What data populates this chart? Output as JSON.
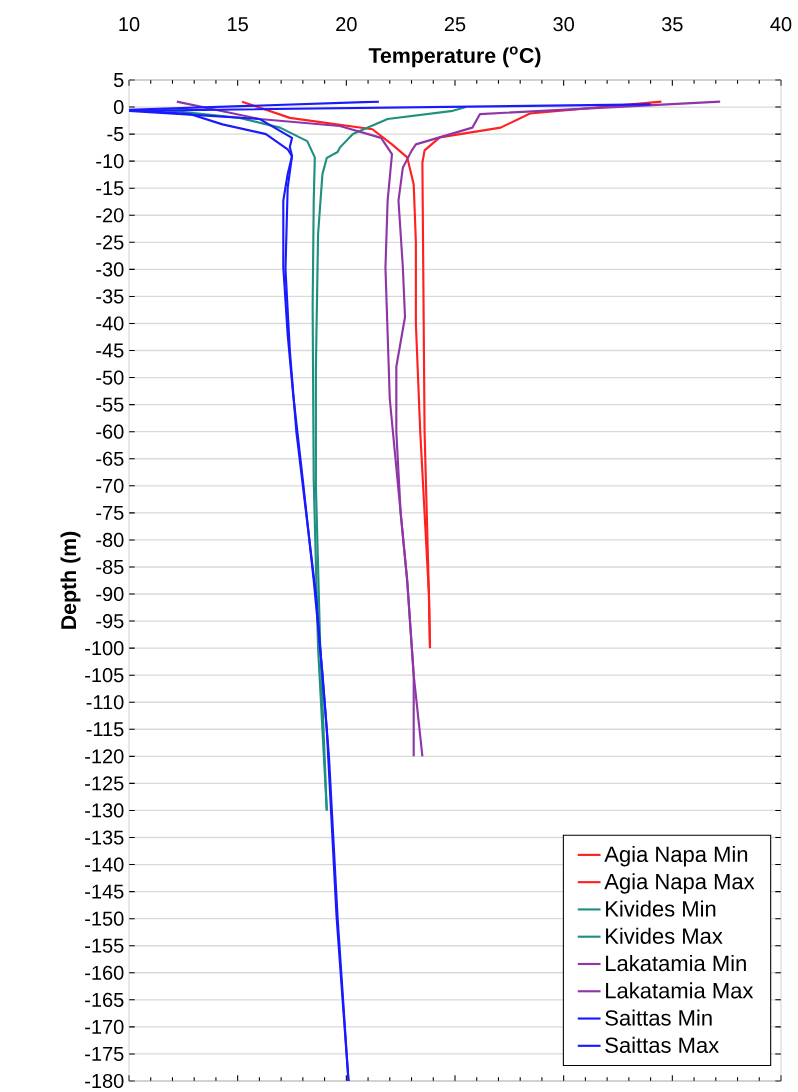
{
  "chart_data": {
    "type": "line",
    "xlabel": "Temperature ($^{o}$C)",
    "ylabel": "Depth (m)",
    "xlim": [
      10,
      40
    ],
    "ylim": [
      -180,
      5
    ],
    "xticks": [
      10,
      15,
      20,
      25,
      30,
      35,
      40
    ],
    "yticks": [
      5,
      0,
      -5,
      -10,
      -15,
      -20,
      -25,
      -30,
      -35,
      -40,
      -45,
      -50,
      -55,
      -60,
      -65,
      -70,
      -75,
      -80,
      -85,
      -90,
      -95,
      -100,
      -105,
      -110,
      -115,
      -120,
      -125,
      -130,
      -135,
      -140,
      -145,
      -150,
      -155,
      -160,
      -165,
      -170,
      -175,
      -180
    ],
    "grid": "y",
    "legend": "bottom right",
    "series": [
      {
        "name": "Agia Napa Min",
        "color": "#ff2020",
        "x": [
          15.2,
          17.4,
          21.2,
          22.1,
          22.8,
          23.1,
          23.2,
          23.2,
          23.4,
          23.6,
          23.8,
          23.85
        ],
        "values": [
          1,
          -2,
          -4.1,
          -6.9,
          -9.3,
          -14.3,
          -25,
          -40,
          -60,
          -75,
          -90,
          -100
        ]
      },
      {
        "name": "Agia Napa Max",
        "color": "#ff2020",
        "x": [
          34.5,
          28.45,
          27.1,
          24.3,
          23.6,
          23.5,
          23.6,
          23.7,
          23.8,
          23.85
        ],
        "values": [
          1,
          -1.2,
          -3.8,
          -5.6,
          -8,
          -10.3,
          -60,
          -75,
          -90,
          -100
        ]
      },
      {
        "name": "Kivides Min",
        "color": "#1f9080",
        "x": [
          11.5,
          15.1,
          16.95,
          18.2,
          18.55,
          18.5,
          18.45,
          18.5,
          18.7,
          19.1
        ],
        "values": [
          -0.5,
          -2,
          -3.8,
          -6.3,
          -9.3,
          -17.3,
          -37,
          -69,
          -100,
          -130
        ]
      },
      {
        "name": "Kivides Max",
        "color": "#1f9080",
        "x": [
          25.5,
          24.9,
          21.9,
          20.3,
          19.7,
          19.6,
          19.1,
          18.9,
          18.7,
          18.6,
          18.6,
          18.8,
          19.1
        ],
        "values": [
          0,
          -0.7,
          -2.2,
          -5,
          -7.5,
          -8.3,
          -9.4,
          -12.4,
          -23.5,
          -48,
          -70,
          -100,
          -130
        ]
      },
      {
        "name": "Lakatamia Min",
        "color": "#8e35a8",
        "x": [
          12.2,
          16.0,
          19.7,
          21.6,
          22.1,
          21.9,
          21.8,
          21.9,
          22.0,
          22.5,
          22.8,
          23.1,
          23.1
        ],
        "values": [
          1,
          -2.2,
          -3.5,
          -5.7,
          -8.7,
          -17.3,
          -29.7,
          -41.9,
          -54,
          -75,
          -87.5,
          -105,
          -120
        ]
      },
      {
        "name": "Lakatamia Max",
        "color": "#8e35a8",
        "x": [
          37.2,
          26.15,
          25.8,
          23.2,
          23.0,
          22.6,
          22.4,
          22.6,
          22.7,
          22.3,
          22.3,
          22.5,
          22.8,
          23.1,
          23.5
        ],
        "values": [
          1,
          -1.3,
          -3.8,
          -6.9,
          -8.1,
          -11.2,
          -17.3,
          -29.6,
          -38.8,
          -48,
          -60,
          -75,
          -87.5,
          -105,
          -120
        ]
      },
      {
        "name": "Saittas Min",
        "color": "#1a1aff",
        "x": [
          21.5,
          10,
          12.8,
          14.3,
          16.3,
          17.3,
          17.5,
          17.3,
          17.1,
          17.1,
          17.3,
          17.55,
          18.0,
          18.5,
          18.9,
          19.1,
          19.55,
          20.1
        ],
        "values": [
          1,
          -0.5,
          -1.3,
          -3.2,
          -5,
          -7.8,
          -9.1,
          -12.4,
          -17.3,
          -29.6,
          -42,
          -53,
          -69,
          -87.5,
          -104.6,
          -115,
          -149.6,
          -180
        ]
      },
      {
        "name": "Saittas Max",
        "color": "#1a1aff",
        "x": [
          34,
          10,
          16.0,
          17.5,
          17.4,
          17.5,
          17.3,
          17.2,
          17.4,
          17.7,
          18.6,
          19.2,
          19.6,
          20.1
        ],
        "values": [
          0.5,
          -0.7,
          -2.2,
          -5.7,
          -7.4,
          -9,
          -15,
          -30,
          -45,
          -60,
          -90,
          -120,
          -150,
          -180
        ]
      }
    ]
  }
}
